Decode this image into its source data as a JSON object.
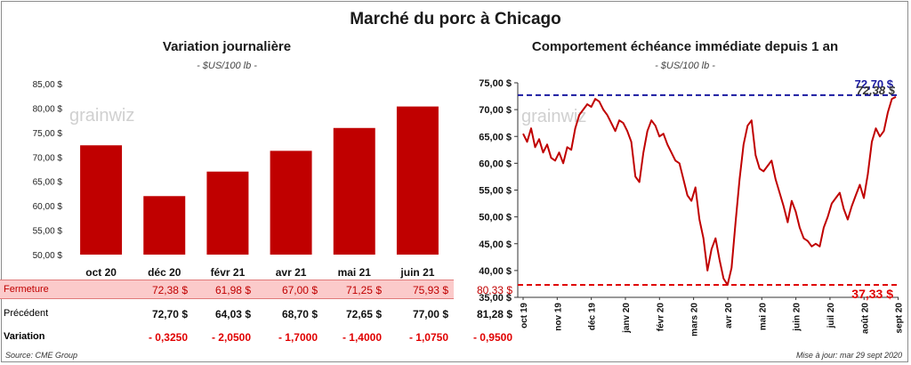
{
  "title": "Marché du porc à Chicago",
  "left_chart": {
    "title": "Variation journalière",
    "unit": "- $US/100 lb -"
  },
  "right_chart": {
    "title": "Comportement échéance immédiate depuis 1 an",
    "unit": "- $US/100 lb -"
  },
  "watermark": "grainwiz",
  "colors": {
    "bar": "#c00000",
    "line": "#c00000",
    "upper_ref": "#1a1aa0",
    "lower_ref": "#e00000"
  },
  "chart_data": [
    {
      "type": "bar",
      "categories": [
        "oct 20",
        "déc 20",
        "févr 21",
        "avr 21",
        "mai 21",
        "juin 21"
      ],
      "values": [
        72.38,
        61.98,
        67.0,
        71.25,
        75.93,
        80.33
      ],
      "ylim": [
        50,
        85
      ],
      "yticks": [
        "85,00 $",
        "80,00 $",
        "75,00 $",
        "70,00 $",
        "65,00 $",
        "60,00 $",
        "55,00 $",
        "50,00 $"
      ],
      "ytick_values": [
        85,
        80,
        75,
        70,
        65,
        60,
        55,
        50
      ],
      "grid": false
    },
    {
      "type": "line",
      "x_start": "2019-10-01",
      "x_end": "2020-09-29",
      "xticks": [
        "oct 19",
        "nov 19",
        "déc 19",
        "janv 20",
        "févr 20",
        "mars 20",
        "avr 20",
        "mai 20",
        "juin 20",
        "juil 20",
        "août 20",
        "sept 20"
      ],
      "ylim": [
        35,
        75
      ],
      "yticks": [
        "75,00 $",
        "70,00 $",
        "65,00 $",
        "60,00 $",
        "55,00 $",
        "50,00 $",
        "45,00 $",
        "40,00 $",
        "35,00 $"
      ],
      "ytick_values": [
        75,
        70,
        65,
        60,
        55,
        50,
        45,
        40,
        35
      ],
      "values": [
        65.5,
        64.0,
        66.5,
        63.0,
        64.5,
        62.0,
        63.5,
        61.0,
        60.5,
        62.0,
        60.0,
        63.0,
        62.5,
        66.5,
        69.0,
        70.0,
        71.0,
        70.5,
        72.0,
        71.5,
        70.0,
        69.0,
        67.5,
        66.0,
        68.0,
        67.5,
        66.0,
        64.0,
        57.5,
        56.5,
        62.0,
        66.0,
        68.0,
        67.0,
        65.0,
        65.5,
        63.5,
        62.0,
        60.5,
        60.0,
        57.0,
        54.0,
        53.0,
        55.5,
        49.5,
        46.0,
        40.0,
        44.0,
        46.0,
        42.0,
        38.5,
        37.33,
        40.5,
        49.0,
        57.0,
        63.5,
        67.0,
        68.0,
        61.5,
        59.0,
        58.5,
        59.5,
        60.5,
        57.0,
        54.5,
        52.0,
        49.0,
        53.0,
        51.0,
        48.0,
        46.0,
        45.5,
        44.5,
        45.0,
        44.5,
        48.0,
        50.0,
        52.5,
        53.5,
        54.5,
        51.5,
        49.5,
        52.0,
        54.0,
        56.0,
        53.5,
        58.0,
        64.0,
        66.5,
        65.0,
        66.0,
        69.5,
        72.0,
        72.38
      ],
      "reference_lines": [
        {
          "value": 72.7,
          "label": "72,70 $"
        },
        {
          "value": 37.33,
          "label": "37,33 $"
        }
      ],
      "last_value_label": "72,38 $",
      "grid": false
    }
  ],
  "table": {
    "rows": [
      {
        "label": "Fermeture",
        "cells": [
          "72,38 $",
          "61,98 $",
          "67,00 $",
          "71,25 $",
          "75,93 $",
          "80,33 $"
        ]
      },
      {
        "label": "Précédent",
        "cells": [
          "72,70 $",
          "64,03 $",
          "68,70 $",
          "72,65 $",
          "77,00 $",
          "81,28 $"
        ]
      },
      {
        "label": "Variation",
        "cells": [
          "- 0,3250",
          "- 2,0500",
          "- 1,7000",
          "- 1,4000",
          "- 1,0750",
          "- 0,9500"
        ]
      }
    ]
  },
  "source": "Source: CME Group",
  "updated": "Mise à jour: mar 29 sept 2020"
}
